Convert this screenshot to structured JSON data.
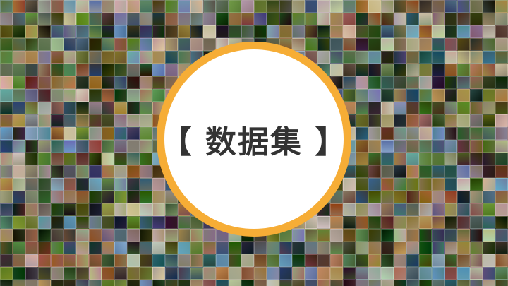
{
  "badge": {
    "title": "【 数据集 】",
    "ring_color": "#f6ad36",
    "fill_color": "#ffffff",
    "text_color": "#333333"
  },
  "background": {
    "description_icon": "image-mosaic"
  }
}
